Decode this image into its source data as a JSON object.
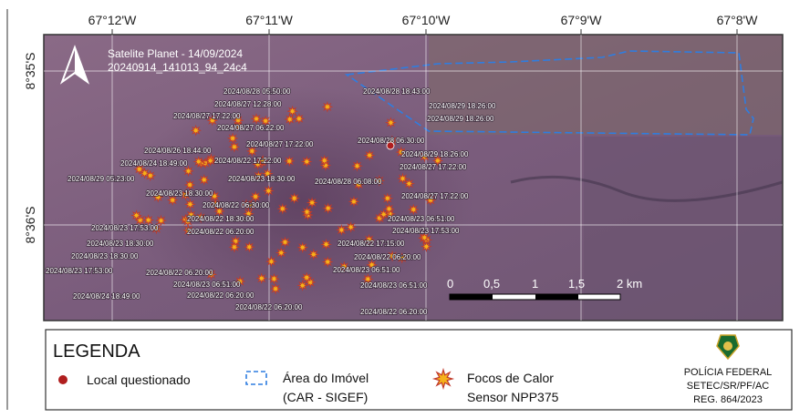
{
  "map": {
    "coordinates": {
      "top": [
        "67°12'W",
        "67°11'W",
        "67°10'W",
        "67°9'W",
        "67°8'W"
      ],
      "left": [
        "8°35'S",
        "8°36'S"
      ]
    },
    "image_caption": [
      "Satelite Planet - 14/09/2024",
      "20240914_141013_94_24c4"
    ],
    "fire_labels": [
      "2024/08/28 05:50:00",
      "2024/08/27 12:28:00",
      "2024/08/27 17:22:00",
      "2024/08/27 06:22:00",
      "2024/08/28 18:43:00",
      "2024/08/29 18:26:00",
      "2024/08/29 18:26:00",
      "2024/08/28 06:30:00",
      "2024/08/26 18:44:00",
      "2024/08/24 18:49:00",
      "2024/08/27 17:22:00",
      "2024/08/22 17:22:00",
      "2024/08/29 18:26:00",
      "2024/08/27 17:22:00",
      "2024/08/29 05:23:00",
      "2024/08/23 18:30:00",
      "2024/08/28 06:08:00",
      "2024/08/23 18:30:00",
      "2024/08/27 17:22:00",
      "2024/08/22 06:30:00",
      "2024/08/22 18:30:00",
      "2024/08/23 06:51:00",
      "2024/08/23 17:53:00",
      "2024/08/22 06:20:00",
      "2024/08/23 17:53:00",
      "2024/08/23 18:30:00",
      "2024/08/22 17:15:00",
      "2024/08/23 18:30:00",
      "2024/08/22 06:20:00",
      "2024/08/23 17:53:00",
      "2024/08/22 06:20:00",
      "2024/08/23 06:51:00",
      "2024/08/23 06:51:00",
      "2024/08/23 06:51:00",
      "2024/08/24 18:49:00",
      "2024/08/22 06:20:00",
      "2024/08/22 06:20:00",
      "2024/08/22 06:20:00"
    ],
    "scale_bar": [
      "0",
      "0,5",
      "1",
      "1,5",
      "2 km"
    ]
  },
  "legend": {
    "title": "LEGENDA",
    "items": [
      {
        "label": [
          "Local questionado"
        ]
      },
      {
        "label": [
          "Área do Imóvel",
          "(CAR - SIGEF)"
        ]
      },
      {
        "label": [
          "Focos de Calor",
          "Sensor NPP375"
        ]
      }
    ],
    "agency": [
      "POLÍCIA FEDERAL",
      "SETEC/SR/PF/AC",
      "REG. 864/2023"
    ]
  }
}
